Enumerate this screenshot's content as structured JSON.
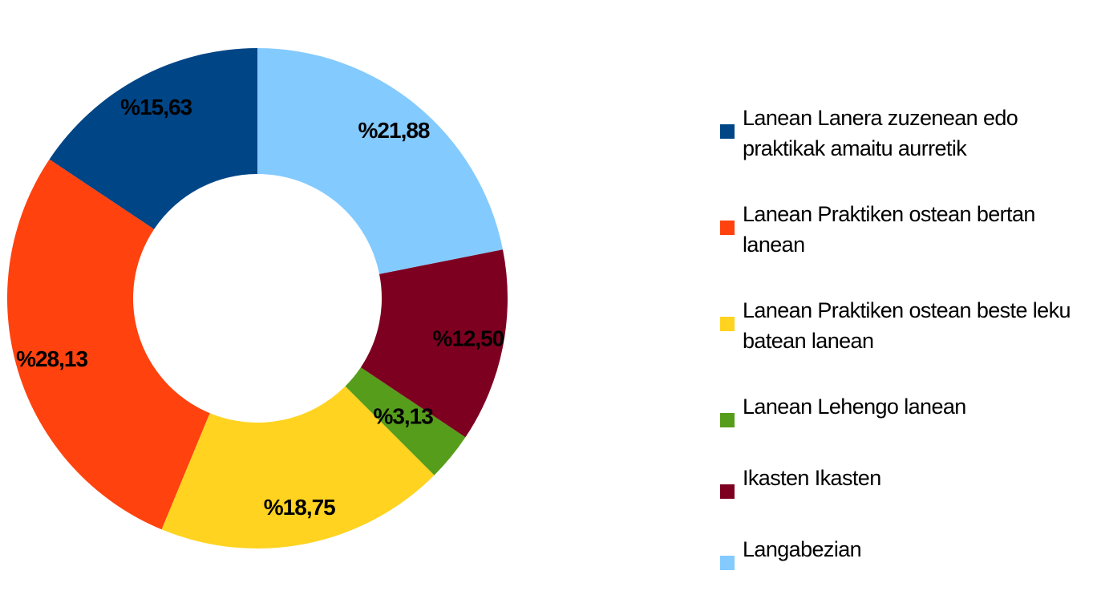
{
  "chart_data": {
    "type": "donut",
    "series": [
      {
        "name": "Lanean Lanera zuzenean edo praktikak amaitu aurretik",
        "color": "#004586",
        "values": [
          15.63
        ],
        "value_labels": [
          "%15,63"
        ]
      },
      {
        "name": "Lanean Praktiken ostean bertan lanean",
        "color": "#ff420e",
        "values": [
          28.13
        ],
        "value_labels": [
          "%28,13"
        ]
      },
      {
        "name": "Lanean Praktiken ostean beste leku batean lanean",
        "color": "#ffd320",
        "values": [
          18.75
        ],
        "value_labels": [
          "%18,75"
        ]
      },
      {
        "name": "Lanean Lehengo lanean",
        "color": "#579d1c",
        "values": [
          3.13
        ],
        "value_labels": [
          "%3,13"
        ]
      },
      {
        "name": "Ikasten Ikasten",
        "color": "#7e0021",
        "values": [
          12.5
        ],
        "value_labels": [
          "%12,50"
        ]
      },
      {
        "name": "Langabezian",
        "color": "#83caff",
        "values": [
          21.88
        ],
        "value_labels": [
          "%21,88"
        ]
      }
    ]
  }
}
